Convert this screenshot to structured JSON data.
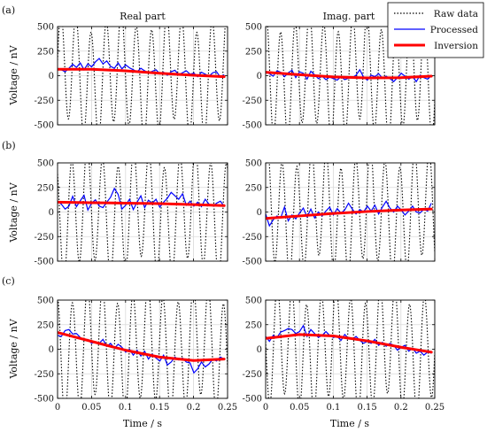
{
  "chart_data": {
    "type": "line",
    "panel_letters": [
      "(a)",
      "(b)",
      "(c)"
    ],
    "column_titles": [
      "Real part",
      "Imag. part"
    ],
    "ylabel": "Voltage / nV",
    "xlabel": "Time / s",
    "xlim": [
      0,
      0.25
    ],
    "ylim": [
      -500,
      500
    ],
    "xticks": [
      "0",
      "0.05",
      "0.1",
      "0.15",
      "0.2",
      "0.25"
    ],
    "yticks": [
      "500",
      "250",
      "0",
      "-250",
      "-500"
    ],
    "legend": {
      "placement": "top-right",
      "entries": [
        {
          "label": "Raw data",
          "color": "#000000",
          "style": "dotted"
        },
        {
          "label": "Processed",
          "color": "#0000ff",
          "style": "solid"
        },
        {
          "label": "Inversion",
          "color": "#ff0000",
          "style": "thick"
        }
      ]
    },
    "grid": true,
    "panels": [
      {
        "id": "a-real",
        "raw": {
          "amplitude": 560,
          "freq": 45,
          "phase": 0.2
        },
        "processed": [
          70,
          60,
          40,
          75,
          115,
          85,
          130,
          60,
          120,
          90,
          140,
          175,
          120,
          150,
          95,
          75,
          130,
          70,
          110,
          80,
          60,
          40,
          75,
          50,
          30,
          45,
          60,
          20,
          35,
          5,
          40,
          55,
          10,
          30,
          50,
          15,
          25,
          -10,
          35,
          15,
          -5,
          30,
          40,
          -15,
          10
        ],
        "inversion": [
          [
            0,
            65
          ],
          [
            0.05,
            65
          ],
          [
            0.1,
            50
          ],
          [
            0.15,
            25
          ],
          [
            0.2,
            5
          ],
          [
            0.245,
            -10
          ]
        ]
      },
      {
        "id": "a-imag",
        "raw": {
          "amplitude": 560,
          "freq": 47,
          "phase": 1.3
        },
        "processed": [
          40,
          20,
          -5,
          50,
          35,
          -10,
          30,
          55,
          -20,
          40,
          25,
          -35,
          45,
          10,
          -30,
          -5,
          -40,
          -15,
          -30,
          -45,
          -10,
          -40,
          -25,
          -20,
          5,
          60,
          -15,
          -45,
          5,
          -10,
          20,
          -25,
          -5,
          -30,
          -60,
          -20,
          25,
          -5,
          -35,
          -10,
          -60,
          5,
          -20,
          -35,
          0
        ],
        "inversion": [
          [
            0,
            35
          ],
          [
            0.05,
            10
          ],
          [
            0.1,
            -12
          ],
          [
            0.15,
            -22
          ],
          [
            0.2,
            -20
          ],
          [
            0.245,
            -5
          ]
        ]
      },
      {
        "id": "b-real",
        "raw": {
          "amplitude": 570,
          "freq": 44,
          "phase": 2.1
        },
        "processed": [
          110,
          80,
          30,
          60,
          160,
          55,
          115,
          170,
          20,
          90,
          125,
          60,
          45,
          100,
          150,
          240,
          180,
          30,
          70,
          130,
          25,
          100,
          165,
          45,
          120,
          90,
          130,
          50,
          100,
          140,
          200,
          165,
          130,
          185,
          70,
          110,
          60,
          100,
          55,
          130,
          80,
          60,
          90,
          110,
          60
        ],
        "inversion": [
          [
            0,
            100
          ],
          [
            0.05,
            95
          ],
          [
            0.1,
            90
          ],
          [
            0.15,
            85
          ],
          [
            0.2,
            75
          ],
          [
            0.245,
            65
          ]
        ]
      },
      {
        "id": "b-imag",
        "raw": {
          "amplitude": 560,
          "freq": 46,
          "phase": 0.8
        },
        "processed": [
          -20,
          -140,
          -80,
          -40,
          -60,
          50,
          -90,
          -30,
          -70,
          -10,
          40,
          -50,
          30,
          -60,
          0,
          -40,
          10,
          50,
          -30,
          35,
          -10,
          20,
          90,
          30,
          -20,
          25,
          0,
          60,
          10,
          70,
          -20,
          50,
          110,
          40,
          0,
          60,
          20,
          -30,
          10,
          60,
          0,
          -10,
          30,
          10,
          90
        ],
        "inversion": [
          [
            0,
            -65
          ],
          [
            0.05,
            -40
          ],
          [
            0.1,
            -15
          ],
          [
            0.15,
            5
          ],
          [
            0.2,
            20
          ],
          [
            0.245,
            30
          ]
        ]
      },
      {
        "id": "c-real",
        "raw": {
          "amplitude": 580,
          "freq": 45,
          "phase": 1.7
        },
        "processed": [
          140,
          130,
          190,
          200,
          155,
          160,
          120,
          90,
          100,
          60,
          75,
          60,
          100,
          30,
          60,
          10,
          50,
          20,
          -30,
          0,
          -60,
          -10,
          -70,
          -20,
          -100,
          -50,
          -90,
          -120,
          -60,
          -160,
          -130,
          -80,
          -110,
          -90,
          -130,
          -140,
          -240,
          -200,
          -130,
          -180,
          -150,
          -100,
          -120,
          -80,
          -100
        ],
        "inversion": [
          [
            0,
            170
          ],
          [
            0.05,
            80
          ],
          [
            0.1,
            -10
          ],
          [
            0.15,
            -80
          ],
          [
            0.2,
            -115
          ],
          [
            0.245,
            -100
          ]
        ]
      },
      {
        "id": "c-imag",
        "raw": {
          "amplitude": 570,
          "freq": 46,
          "phase": 2.9
        },
        "processed": [
          130,
          80,
          140,
          120,
          175,
          190,
          210,
          200,
          160,
          180,
          240,
          130,
          200,
          160,
          120,
          140,
          180,
          140,
          120,
          130,
          90,
          150,
          110,
          100,
          130,
          90,
          60,
          80,
          60,
          100,
          40,
          70,
          30,
          60,
          40,
          -10,
          20,
          40,
          -20,
          10,
          -40,
          -20,
          -60,
          -30,
          -40
        ],
        "inversion": [
          [
            0,
            110
          ],
          [
            0.05,
            150
          ],
          [
            0.1,
            135
          ],
          [
            0.15,
            85
          ],
          [
            0.2,
            20
          ],
          [
            0.245,
            -30
          ]
        ]
      }
    ]
  }
}
